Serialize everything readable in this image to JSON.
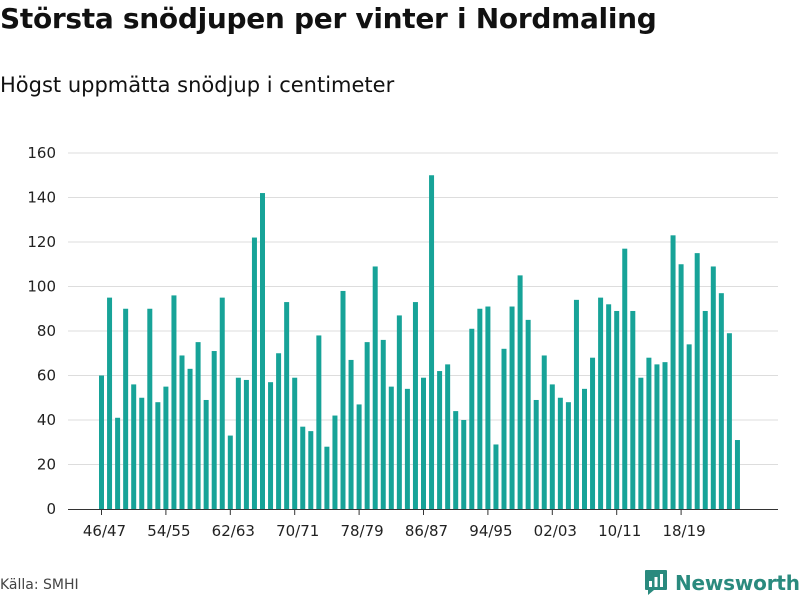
{
  "chart_data": {
    "type": "bar",
    "title": "Största snödjupen per vinter i Nordmaling",
    "subtitle": "Högst uppmätta snödjup i centimeter",
    "xlabel": "",
    "ylabel": "",
    "ylim": [
      0,
      160
    ],
    "yticks": [
      0,
      20,
      40,
      60,
      80,
      100,
      120,
      140,
      160
    ],
    "grid": true,
    "color": "#17a398",
    "x_tick_labels": [
      "46/47",
      "54/55",
      "62/63",
      "70/71",
      "78/79",
      "86/87",
      "94/95",
      "02/03",
      "10/11",
      "18/19"
    ],
    "x_tick_every": 8,
    "start_season": 1946,
    "values": [
      60,
      95,
      41,
      90,
      56,
      50,
      90,
      48,
      55,
      96,
      69,
      63,
      75,
      49,
      71,
      95,
      33,
      59,
      58,
      122,
      142,
      57,
      70,
      93,
      59,
      37,
      35,
      78,
      28,
      42,
      98,
      67,
      47,
      75,
      109,
      76,
      55,
      87,
      54,
      93,
      59,
      150,
      62,
      65,
      44,
      40,
      81,
      90,
      91,
      29,
      72,
      91,
      105,
      85,
      49,
      69,
      56,
      50,
      48,
      94,
      54,
      68,
      95,
      92,
      89,
      117,
      89,
      59,
      68,
      65,
      66,
      123,
      110,
      74,
      115,
      89,
      109,
      97,
      79,
      31
    ]
  },
  "footer": {
    "source": "Källa: SMHI",
    "brand": "Newsworthy"
  },
  "colors": {
    "bar": "#17a398",
    "grid": "#dddddd",
    "axis": "#333333",
    "brand": "#2a8a7e"
  }
}
